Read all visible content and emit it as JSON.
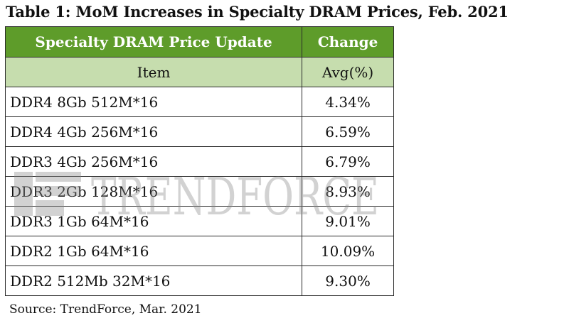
{
  "title": "Table 1: MoM Increases in Specialty DRAM Prices, Feb. 2021",
  "table": {
    "header": {
      "col1": "Specialty DRAM Price Update",
      "col2": "Change"
    },
    "subheader": {
      "col1": "Item",
      "col2": "Avg(%)"
    },
    "rows": [
      {
        "item": "DDR4 8Gb 512M*16",
        "change": "4.34%"
      },
      {
        "item": "DDR4 4Gb 256M*16",
        "change": "6.59%"
      },
      {
        "item": "DDR3 4Gb 256M*16",
        "change": "6.79%"
      },
      {
        "item": "DDR3 2Gb 128M*16",
        "change": "8.93%"
      },
      {
        "item": "DDR3 1Gb 64M*16",
        "change": "9.01%"
      },
      {
        "item": "DDR2 1Gb 64M*16",
        "change": "10.09%"
      },
      {
        "item": "DDR2 512Mb 32M*16",
        "change": "9.30%"
      }
    ]
  },
  "source": "Source: TrendForce, Mar. 2021",
  "watermark": {
    "text": "TRENDFORCE",
    "icon": "trendforce-logo-icon"
  },
  "colors": {
    "header_bg": "#5e9c2a",
    "subheader_bg": "#c6ddae",
    "watermark": "#8a8a8a"
  }
}
